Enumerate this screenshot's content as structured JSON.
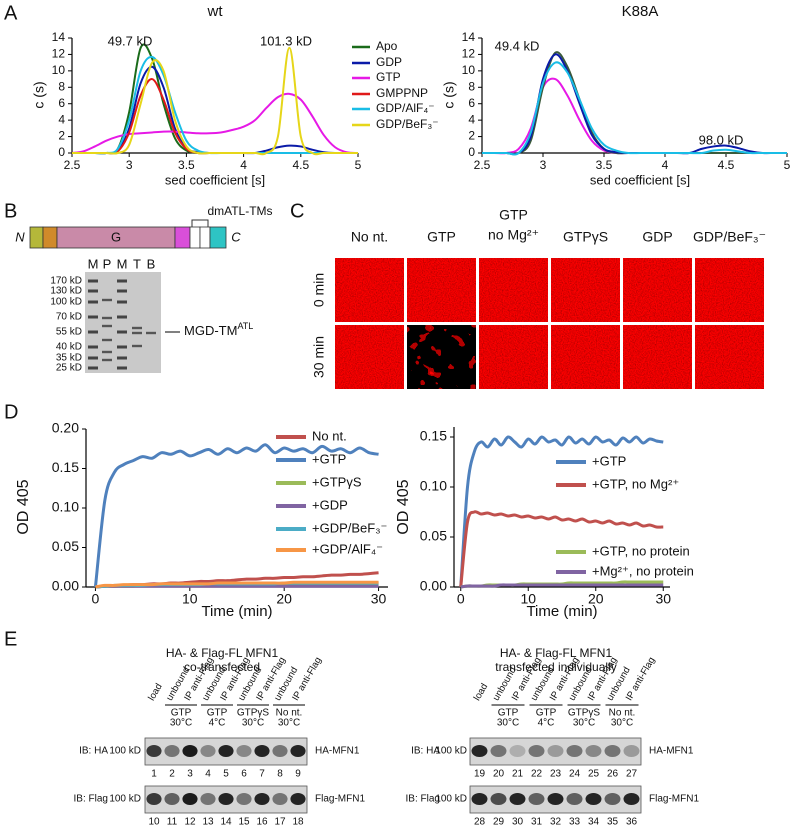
{
  "panel_labels": [
    "A",
    "B",
    "C",
    "D",
    "E"
  ],
  "chart_data": [
    {
      "type": "line",
      "title": "wt",
      "xlabel": "sed coefficient [s]",
      "ylabel": "c (s)",
      "x": [
        2.5,
        2.6,
        2.7,
        2.8,
        2.9,
        3.0,
        3.1,
        3.2,
        3.3,
        3.4,
        3.5,
        3.6,
        3.7,
        3.8,
        3.9,
        4.0,
        4.1,
        4.2,
        4.3,
        4.4,
        4.5,
        4.6,
        4.7,
        4.8,
        4.9,
        5.0
      ],
      "xlim": [
        2.5,
        5
      ],
      "xticks": [
        2.5,
        3,
        3.5,
        4,
        4.5,
        5
      ],
      "ylim": [
        0,
        14
      ],
      "yticks": [
        0,
        2,
        4,
        6,
        8,
        10,
        12,
        14
      ],
      "annotations": [
        "49.7 kD",
        "101.3 kD"
      ],
      "series": [
        {
          "name": "Apo",
          "color": "#1a6b1a",
          "values": [
            0,
            0,
            0,
            0,
            0.5,
            5,
            12.8,
            11.5,
            6,
            1.8,
            0.3,
            0,
            0,
            0,
            0,
            0,
            0,
            0,
            0,
            0,
            0,
            0,
            0,
            0,
            0,
            0
          ]
        },
        {
          "name": "GDP",
          "color": "#0a1aa8",
          "values": [
            0,
            0,
            0,
            0,
            0.3,
            3,
            8.5,
            10.5,
            8,
            3,
            0.6,
            0.1,
            0,
            0,
            0,
            0,
            0,
            0.3,
            0.7,
            0.9,
            0.8,
            0.4,
            0.1,
            0,
            0,
            0
          ]
        },
        {
          "name": "GTP",
          "color": "#e619e6",
          "values": [
            0,
            0.2,
            0.8,
            1.5,
            2,
            2.3,
            2.4,
            2.5,
            2.6,
            2.6,
            2.5,
            2.4,
            2.4,
            2.5,
            2.8,
            3.2,
            4,
            5.5,
            6.8,
            7.2,
            6.5,
            4.5,
            2.2,
            0.7,
            0.1,
            0
          ]
        },
        {
          "name": "GMPPNP",
          "color": "#e01919",
          "values": [
            0,
            0,
            0,
            0,
            0.2,
            2.5,
            7,
            9,
            6.5,
            2.5,
            0.5,
            0,
            0,
            0,
            0,
            0,
            0,
            0,
            0,
            0,
            0,
            0,
            0,
            0,
            0,
            0
          ]
        },
        {
          "name": "GDP/AlF₄⁻",
          "color": "#19bde6",
          "values": [
            0,
            0,
            0,
            0,
            0.5,
            4,
            10,
            11.7,
            9.5,
            5,
            1.5,
            0.3,
            0,
            0,
            0,
            0,
            0,
            0,
            0,
            0,
            0,
            0,
            0,
            0,
            0,
            0
          ]
        },
        {
          "name": "GDP/BeF₃⁻",
          "color": "#e6d619",
          "values": [
            0,
            0,
            0,
            0,
            0,
            1,
            6,
            11,
            10,
            4,
            0.8,
            0,
            0,
            0,
            0,
            0,
            0,
            0,
            2,
            12.8,
            2,
            0,
            0,
            0,
            0,
            0
          ]
        }
      ]
    },
    {
      "type": "line",
      "title": "K88A",
      "xlabel": "sed coefficient [s]",
      "ylabel": "c (s)",
      "x": [
        2.5,
        2.6,
        2.7,
        2.8,
        2.9,
        3.0,
        3.1,
        3.2,
        3.3,
        3.4,
        3.5,
        3.6,
        3.7,
        3.8,
        3.9,
        4.0,
        4.1,
        4.2,
        4.3,
        4.4,
        4.5,
        4.6,
        4.7,
        4.8,
        4.9,
        5.0
      ],
      "xlim": [
        2.5,
        5
      ],
      "xticks": [
        2.5,
        3,
        3.5,
        4,
        4.5,
        5
      ],
      "ylim": [
        0,
        14
      ],
      "yticks": [
        0,
        2,
        4,
        6,
        8,
        10,
        12,
        14
      ],
      "annotations": [
        "49.4 kD",
        "98.0 kD"
      ],
      "series": [
        {
          "color": "#e619e6",
          "values": [
            0,
            0,
            0,
            0.5,
            3,
            8,
            9,
            7,
            4,
            1.5,
            0.3,
            0,
            0,
            0,
            0,
            0,
            0,
            0,
            0,
            0,
            0,
            0,
            0,
            0,
            0,
            0
          ]
        },
        {
          "color": "#3a5a3a",
          "values": [
            0,
            0,
            0,
            0,
            1.5,
            8,
            12.2,
            10.5,
            6.5,
            2.5,
            0.5,
            0,
            0,
            0,
            0,
            0,
            0,
            0,
            0,
            0,
            0,
            0,
            0,
            0,
            0,
            0
          ]
        },
        {
          "color": "#0a1aa8",
          "values": [
            0,
            0,
            0,
            0,
            2,
            9,
            12,
            10,
            6,
            2.2,
            0.5,
            0.1,
            0,
            0,
            0,
            0,
            0,
            0,
            0.5,
            0.8,
            0.9,
            0.6,
            0.2,
            0,
            0,
            0
          ]
        },
        {
          "color": "#19bde6",
          "values": [
            0,
            0,
            0,
            0,
            2.5,
            8.5,
            11,
            9.8,
            6.5,
            3,
            1,
            0.3,
            0,
            0,
            0,
            0,
            0,
            0,
            0,
            0.3,
            0.4,
            0.2,
            0,
            0,
            0,
            0
          ]
        }
      ]
    },
    {
      "type": "line",
      "xlabel": "Time (min)",
      "ylabel": "OD 405",
      "x": [
        0,
        1,
        2,
        3,
        4,
        5,
        6,
        7,
        8,
        9,
        10,
        11,
        12,
        13,
        14,
        15,
        16,
        17,
        18,
        19,
        20,
        21,
        22,
        23,
        24,
        25,
        26,
        27,
        28,
        29,
        30
      ],
      "xlim": [
        -1,
        31
      ],
      "xticks": [
        0,
        10,
        20,
        30
      ],
      "ylim": [
        0,
        0.2
      ],
      "yticks": [
        {
          "value": 0,
          "label": "0.00"
        },
        {
          "value": 0.05,
          "label": "0.05"
        },
        {
          "value": 0.1,
          "label": "0.10"
        },
        {
          "value": 0.15,
          "label": "0.15"
        },
        {
          "value": 0.2,
          "label": "0.20"
        }
      ],
      "series": [
        {
          "name": "No nt.",
          "color": "#c0504d",
          "values": [
            0,
            0.001,
            0.001,
            0.002,
            0.003,
            0.003,
            0.004,
            0.004,
            0.005,
            0.005,
            0.006,
            0.007,
            0.007,
            0.008,
            0.008,
            0.009,
            0.01,
            0.01,
            0.011,
            0.011,
            0.012,
            0.012,
            0.013,
            0.013,
            0.014,
            0.015,
            0.015,
            0.016,
            0.016,
            0.017,
            0.018
          ]
        },
        {
          "name": "+GTP",
          "color": "#4f81bd",
          "values": [
            0,
            0.11,
            0.145,
            0.155,
            0.16,
            0.165,
            0.163,
            0.17,
            0.168,
            0.172,
            0.166,
            0.17,
            0.174,
            0.168,
            0.175,
            0.17,
            0.176,
            0.172,
            0.18,
            0.17,
            0.176,
            0.172,
            0.175,
            0.17,
            0.178,
            0.172,
            0.175,
            0.17,
            0.176,
            0.17,
            0.168
          ]
        },
        {
          "name": "+GTPγS",
          "color": "#9bbb59",
          "values": [
            0,
            0.001,
            0.001,
            0.001,
            0.001,
            0.002,
            0.002,
            0.002,
            0.002,
            0.002,
            0.002,
            0.003,
            0.003,
            0.003,
            0.003,
            0.003,
            0.003,
            0.003,
            0.003,
            0.003,
            0.004,
            0.004,
            0.004,
            0.004,
            0.004,
            0.004,
            0.004,
            0.004,
            0.004,
            0.004,
            0.004
          ]
        },
        {
          "name": "+GDP",
          "color": "#8064a2",
          "values": [
            0,
            0.001,
            0.001,
            0.001,
            0.001,
            0.001,
            0.001,
            0.001,
            0.001,
            0.001,
            0.001,
            0.001,
            0.001,
            0.001,
            0.001,
            0.001,
            0.001,
            0.001,
            0.001,
            0.001,
            0.001,
            0.001,
            0.001,
            0.001,
            0.001,
            0.001,
            0.001,
            0.001,
            0.001,
            0.001,
            0.001
          ]
        },
        {
          "name": "+GDP/BeF₃⁻",
          "color": "#4bacc6",
          "values": [
            0,
            0.001,
            0.002,
            0.002,
            0.002,
            0.002,
            0.003,
            0.003,
            0.003,
            0.003,
            0.003,
            0.003,
            0.004,
            0.004,
            0.004,
            0.004,
            0.004,
            0.004,
            0.004,
            0.004,
            0.005,
            0.005,
            0.005,
            0.005,
            0.005,
            0.005,
            0.005,
            0.005,
            0.005,
            0.005,
            0.005
          ]
        },
        {
          "name": "+GDP/AlF₄⁻",
          "color": "#f79646",
          "values": [
            0,
            0.002,
            0.002,
            0.003,
            0.003,
            0.003,
            0.003,
            0.004,
            0.004,
            0.004,
            0.004,
            0.004,
            0.004,
            0.005,
            0.005,
            0.005,
            0.005,
            0.005,
            0.005,
            0.005,
            0.005,
            0.006,
            0.006,
            0.006,
            0.006,
            0.006,
            0.006,
            0.006,
            0.006,
            0.006,
            0.006
          ]
        }
      ]
    },
    {
      "type": "line",
      "xlabel": "Time (min)",
      "ylabel": "OD 405",
      "x": [
        0,
        1,
        2,
        3,
        4,
        5,
        6,
        7,
        8,
        9,
        10,
        11,
        12,
        13,
        14,
        15,
        16,
        17,
        18,
        19,
        20,
        21,
        22,
        23,
        24,
        25,
        26,
        27,
        28,
        29,
        30
      ],
      "xlim": [
        -1,
        31
      ],
      "xticks": [
        0,
        10,
        20,
        30
      ],
      "ylim": [
        0,
        0.16
      ],
      "yticks": [
        {
          "value": 0,
          "label": "0.00"
        },
        {
          "value": 0.05,
          "label": "0.05"
        },
        {
          "value": 0.1,
          "label": "0.10"
        },
        {
          "value": 0.15,
          "label": "0.15"
        }
      ],
      "series": [
        {
          "name": "+GTP",
          "color": "#4f81bd",
          "values": [
            0,
            0.1,
            0.135,
            0.145,
            0.14,
            0.148,
            0.142,
            0.15,
            0.145,
            0.14,
            0.148,
            0.143,
            0.15,
            0.145,
            0.147,
            0.142,
            0.15,
            0.144,
            0.148,
            0.143,
            0.15,
            0.145,
            0.147,
            0.142,
            0.149,
            0.145,
            0.15,
            0.144,
            0.148,
            0.146,
            0.145
          ]
        },
        {
          "name": "+GTP, no Mg²⁺",
          "color": "#c0504d",
          "values": [
            0,
            0.065,
            0.075,
            0.073,
            0.074,
            0.072,
            0.073,
            0.071,
            0.072,
            0.07,
            0.071,
            0.069,
            0.07,
            0.068,
            0.07,
            0.067,
            0.068,
            0.066,
            0.068,
            0.065,
            0.066,
            0.064,
            0.066,
            0.063,
            0.064,
            0.062,
            0.064,
            0.061,
            0.062,
            0.06,
            0.06
          ]
        },
        {
          "name": "+GTP, no protein",
          "color": "#9bbb59",
          "values": [
            0,
            0.001,
            0.001,
            0.001,
            0.002,
            0.002,
            0.002,
            0.002,
            0.002,
            0.003,
            0.003,
            0.003,
            0.003,
            0.003,
            0.003,
            0.003,
            0.004,
            0.004,
            0.004,
            0.004,
            0.004,
            0.004,
            0.004,
            0.004,
            0.005,
            0.005,
            0.005,
            0.005,
            0.005,
            0.005,
            0.005
          ]
        },
        {
          "name": "+Mg²⁺, no protein",
          "color": "#8064a2",
          "values": [
            0,
            0.001,
            0.001,
            0.001,
            0.001,
            0.001,
            0.002,
            0.002,
            0.002,
            0.002,
            0.002,
            0.002,
            0.002,
            0.002,
            0.002,
            0.002,
            0.002,
            0.002,
            0.002,
            0.002,
            0.002,
            0.002,
            0.002,
            0.002,
            0.002,
            0.002,
            0.002,
            0.002,
            0.002,
            0.002,
            0.002
          ]
        }
      ]
    }
  ],
  "panel_b": {
    "domain": {
      "n": "N",
      "g": "G",
      "c": "C",
      "tm": "dmATL-TMs"
    },
    "lanes": [
      "M",
      "P",
      "M",
      "T",
      "B"
    ],
    "markers": [
      "170 kD",
      "130 kD",
      "100 kD",
      "70 kD",
      "55 kD",
      "40 kD",
      "35 kD",
      "25 kD"
    ],
    "band_label": "MGD-TM",
    "band_label_sup": "ATL"
  },
  "panel_c": {
    "columns": [
      [
        "No nt."
      ],
      [
        "GTP"
      ],
      [
        "GTP",
        "no Mg²⁺"
      ],
      [
        "GTPγS"
      ],
      [
        "GDP"
      ],
      [
        "GDP/BeF₃⁻"
      ]
    ],
    "rows": [
      "0 min",
      "30 min"
    ]
  },
  "panel_e": [
    {
      "title": [
        "HA- & Flag-FL MFN1",
        "co-transfected"
      ],
      "lanes": [
        "load",
        "unbound",
        "IP anti-Flag",
        "unbound",
        "IP anti-Flag",
        "unbound",
        "IP anti-Flag",
        "unbound",
        "IP anti-Flag"
      ],
      "conditions": [
        [
          "GTP",
          "30°C"
        ],
        [
          "GTP",
          "4°C"
        ],
        [
          "GTPγS",
          "30°C"
        ],
        [
          "No nt.",
          "30°C"
        ]
      ],
      "blots": [
        {
          "ib": "IB: HA",
          "size": "100 kD",
          "protein": "HA-MFN1",
          "numbers": [
            1,
            2,
            3,
            4,
            5,
            6,
            7,
            8,
            9
          ]
        },
        {
          "ib": "IB: Flag",
          "size": "100 kD",
          "protein": "Flag-MFN1",
          "numbers": [
            10,
            11,
            12,
            13,
            14,
            15,
            16,
            17,
            18
          ]
        }
      ]
    },
    {
      "title": [
        "HA- & Flag-FL MFN1",
        "transfected individually"
      ],
      "lanes": [
        "load",
        "unbound",
        "IP anti-Flag",
        "unbound",
        "IP anti-Flag",
        "unbound",
        "IP anti-Flag",
        "unbound",
        "IP anti-Flag"
      ],
      "conditions": [
        [
          "GTP",
          "30°C"
        ],
        [
          "GTP",
          "4°C"
        ],
        [
          "GTPγS",
          "30°C"
        ],
        [
          "No nt.",
          "30°C"
        ]
      ],
      "blots": [
        {
          "ib": "IB: HA",
          "size": "100 kD",
          "protein": "HA-MFN1",
          "numbers": [
            19,
            20,
            21,
            22,
            23,
            24,
            25,
            26,
            27
          ]
        },
        {
          "ib": "IB: Flag",
          "size": "100 kD",
          "protein": "Flag-MFN1",
          "numbers": [
            28,
            29,
            30,
            31,
            32,
            33,
            34,
            35,
            36
          ]
        }
      ]
    }
  ]
}
